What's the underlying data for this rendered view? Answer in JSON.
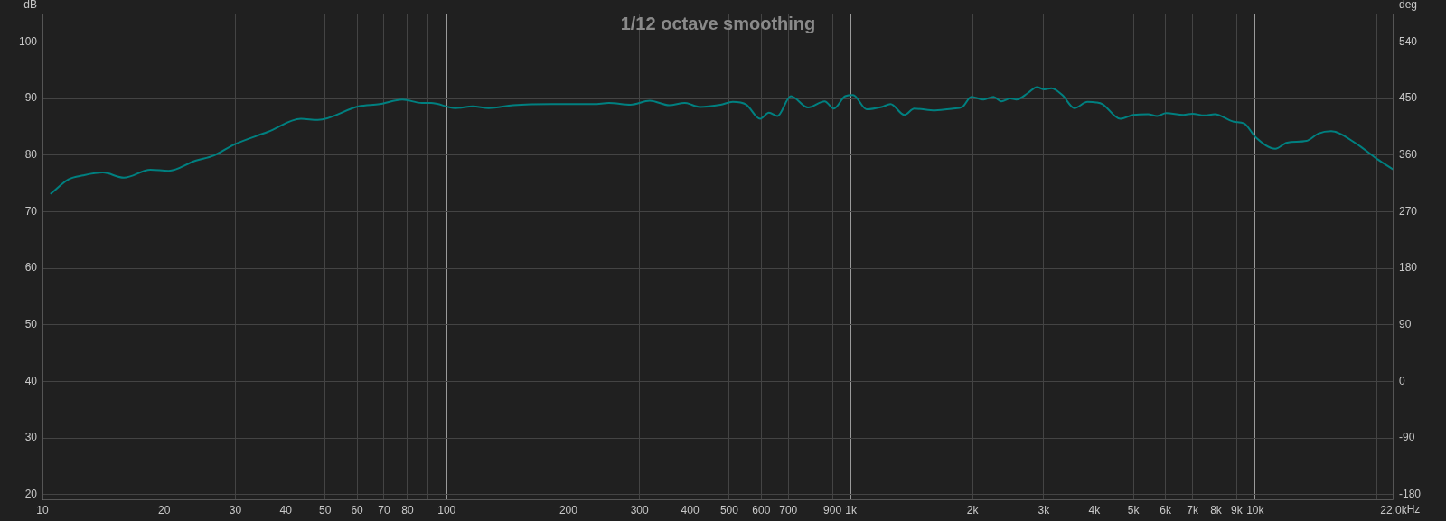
{
  "chart_data": {
    "type": "line",
    "title": "1/12 octave smoothing",
    "ylabel": "dB",
    "y2label": "deg",
    "log": "x",
    "grid": true,
    "legend": false,
    "xlim": [
      10,
      22000
    ],
    "xticks": [
      10,
      20,
      30,
      40,
      50,
      60,
      70,
      80,
      {
        "value": 90,
        "label": null
      },
      100,
      200,
      300,
      400,
      500,
      600,
      700,
      {
        "value": 800,
        "label": null
      },
      900,
      {
        "value": 1000,
        "label": "1k"
      },
      {
        "value": 2000,
        "label": "2k"
      },
      {
        "value": 3000,
        "label": "3k"
      },
      {
        "value": 4000,
        "label": "4k"
      },
      {
        "value": 5000,
        "label": "5k"
      },
      {
        "value": 6000,
        "label": "6k"
      },
      {
        "value": 7000,
        "label": "7k"
      },
      {
        "value": 8000,
        "label": "8k"
      },
      {
        "value": 9000,
        "label": "9k"
      },
      {
        "value": 10000,
        "label": "10k"
      },
      {
        "value": 20000,
        "label": null
      },
      {
        "value": 22000,
        "label": "22,0k"
      }
    ],
    "xlabel": "Hz",
    "ylim": [
      19,
      105
    ],
    "yticks": [
      20,
      30,
      40,
      50,
      60,
      70,
      80,
      90,
      100
    ],
    "y2lim": [
      -189,
      585
    ],
    "y2ticks": [
      -180,
      -90,
      0,
      90,
      180,
      270,
      360,
      450,
      540
    ],
    "series": [
      {
        "color": "#008080",
        "x": [
          10.5,
          11.6,
          12.6,
          14.1,
          15.9,
          18.5,
          20.5,
          23.9,
          26.5,
          29.9,
          36.1,
          43.6,
          48,
          60.5,
          68.3,
          77.7,
          86.8,
          91.5,
          105,
          116,
          127,
          146,
          182,
          231,
          252,
          285,
          318,
          355,
          388,
          423,
          476,
          510,
          551,
          596,
          627,
          658,
          710,
          783,
          861,
          907,
          968,
          1012,
          1093,
          1191,
          1253,
          1356,
          1435,
          1615,
          1791,
          1886,
          1986,
          2128,
          2252,
          2356,
          2480,
          2565,
          2746,
          2883,
          3012,
          3130,
          3335,
          3572,
          3848,
          4047,
          4190,
          4636,
          4997,
          5434,
          5719,
          6023,
          6650,
          6992,
          7486,
          7942,
          8845,
          9386,
          10040,
          11220,
          12000,
          13400,
          14340,
          15420,
          17720,
          19940,
          22000
        ],
        "values": [
          73.2,
          75.7,
          76.4,
          76.9,
          76.0,
          77.4,
          77.2,
          79.0,
          79.9,
          81.9,
          84.1,
          86.4,
          86.2,
          88.6,
          89.0,
          89.8,
          89.2,
          89.2,
          88.3,
          88.6,
          88.3,
          88.8,
          89.0,
          89.0,
          89.2,
          88.9,
          89.6,
          88.8,
          89.2,
          88.5,
          88.9,
          89.4,
          88.9,
          86.4,
          87.5,
          86.9,
          90.4,
          88.4,
          89.5,
          88.2,
          90.4,
          90.6,
          88.1,
          88.5,
          89.0,
          87.1,
          88.2,
          87.9,
          88.2,
          88.5,
          90.3,
          89.8,
          90.3,
          89.5,
          90.0,
          89.8,
          91.0,
          92.0,
          91.6,
          91.8,
          90.6,
          88.3,
          89.4,
          89.3,
          89.0,
          86.4,
          87.1,
          87.2,
          86.9,
          87.4,
          87.1,
          87.3,
          87.0,
          87.2,
          85.9,
          85.6,
          83.1,
          81.1,
          82.2,
          82.5,
          83.8,
          84.2,
          82.1,
          79.4,
          77.4
        ]
      }
    ]
  }
}
